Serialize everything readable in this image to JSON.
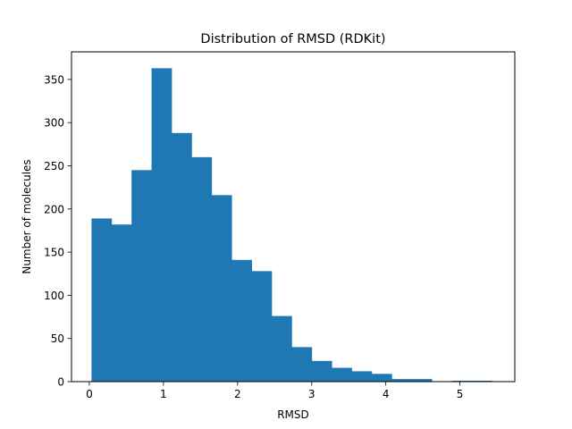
{
  "chart_data": {
    "type": "bar",
    "title": "Distribution of RMSD (RDKit)",
    "xlabel": "RMSD",
    "ylabel": "Number of molecules",
    "xlim": [
      -0.24,
      5.74
    ],
    "ylim": [
      0,
      382
    ],
    "xticks": [
      0,
      1,
      2,
      3,
      4,
      5
    ],
    "yticks": [
      0,
      50,
      100,
      150,
      200,
      250,
      300,
      350
    ],
    "bin_edges": [
      0.03,
      0.3,
      0.57,
      0.84,
      1.11,
      1.38,
      1.65,
      1.92,
      2.19,
      2.46,
      2.73,
      3.0,
      3.27,
      3.54,
      3.81,
      4.08,
      4.35,
      4.62,
      4.89,
      5.16,
      5.43
    ],
    "counts": [
      189,
      182,
      245,
      363,
      288,
      260,
      216,
      141,
      128,
      76,
      40,
      24,
      16,
      12,
      9,
      3,
      3,
      0,
      1,
      1
    ],
    "color": "#1f77b4",
    "grid": false,
    "legend": "none"
  }
}
